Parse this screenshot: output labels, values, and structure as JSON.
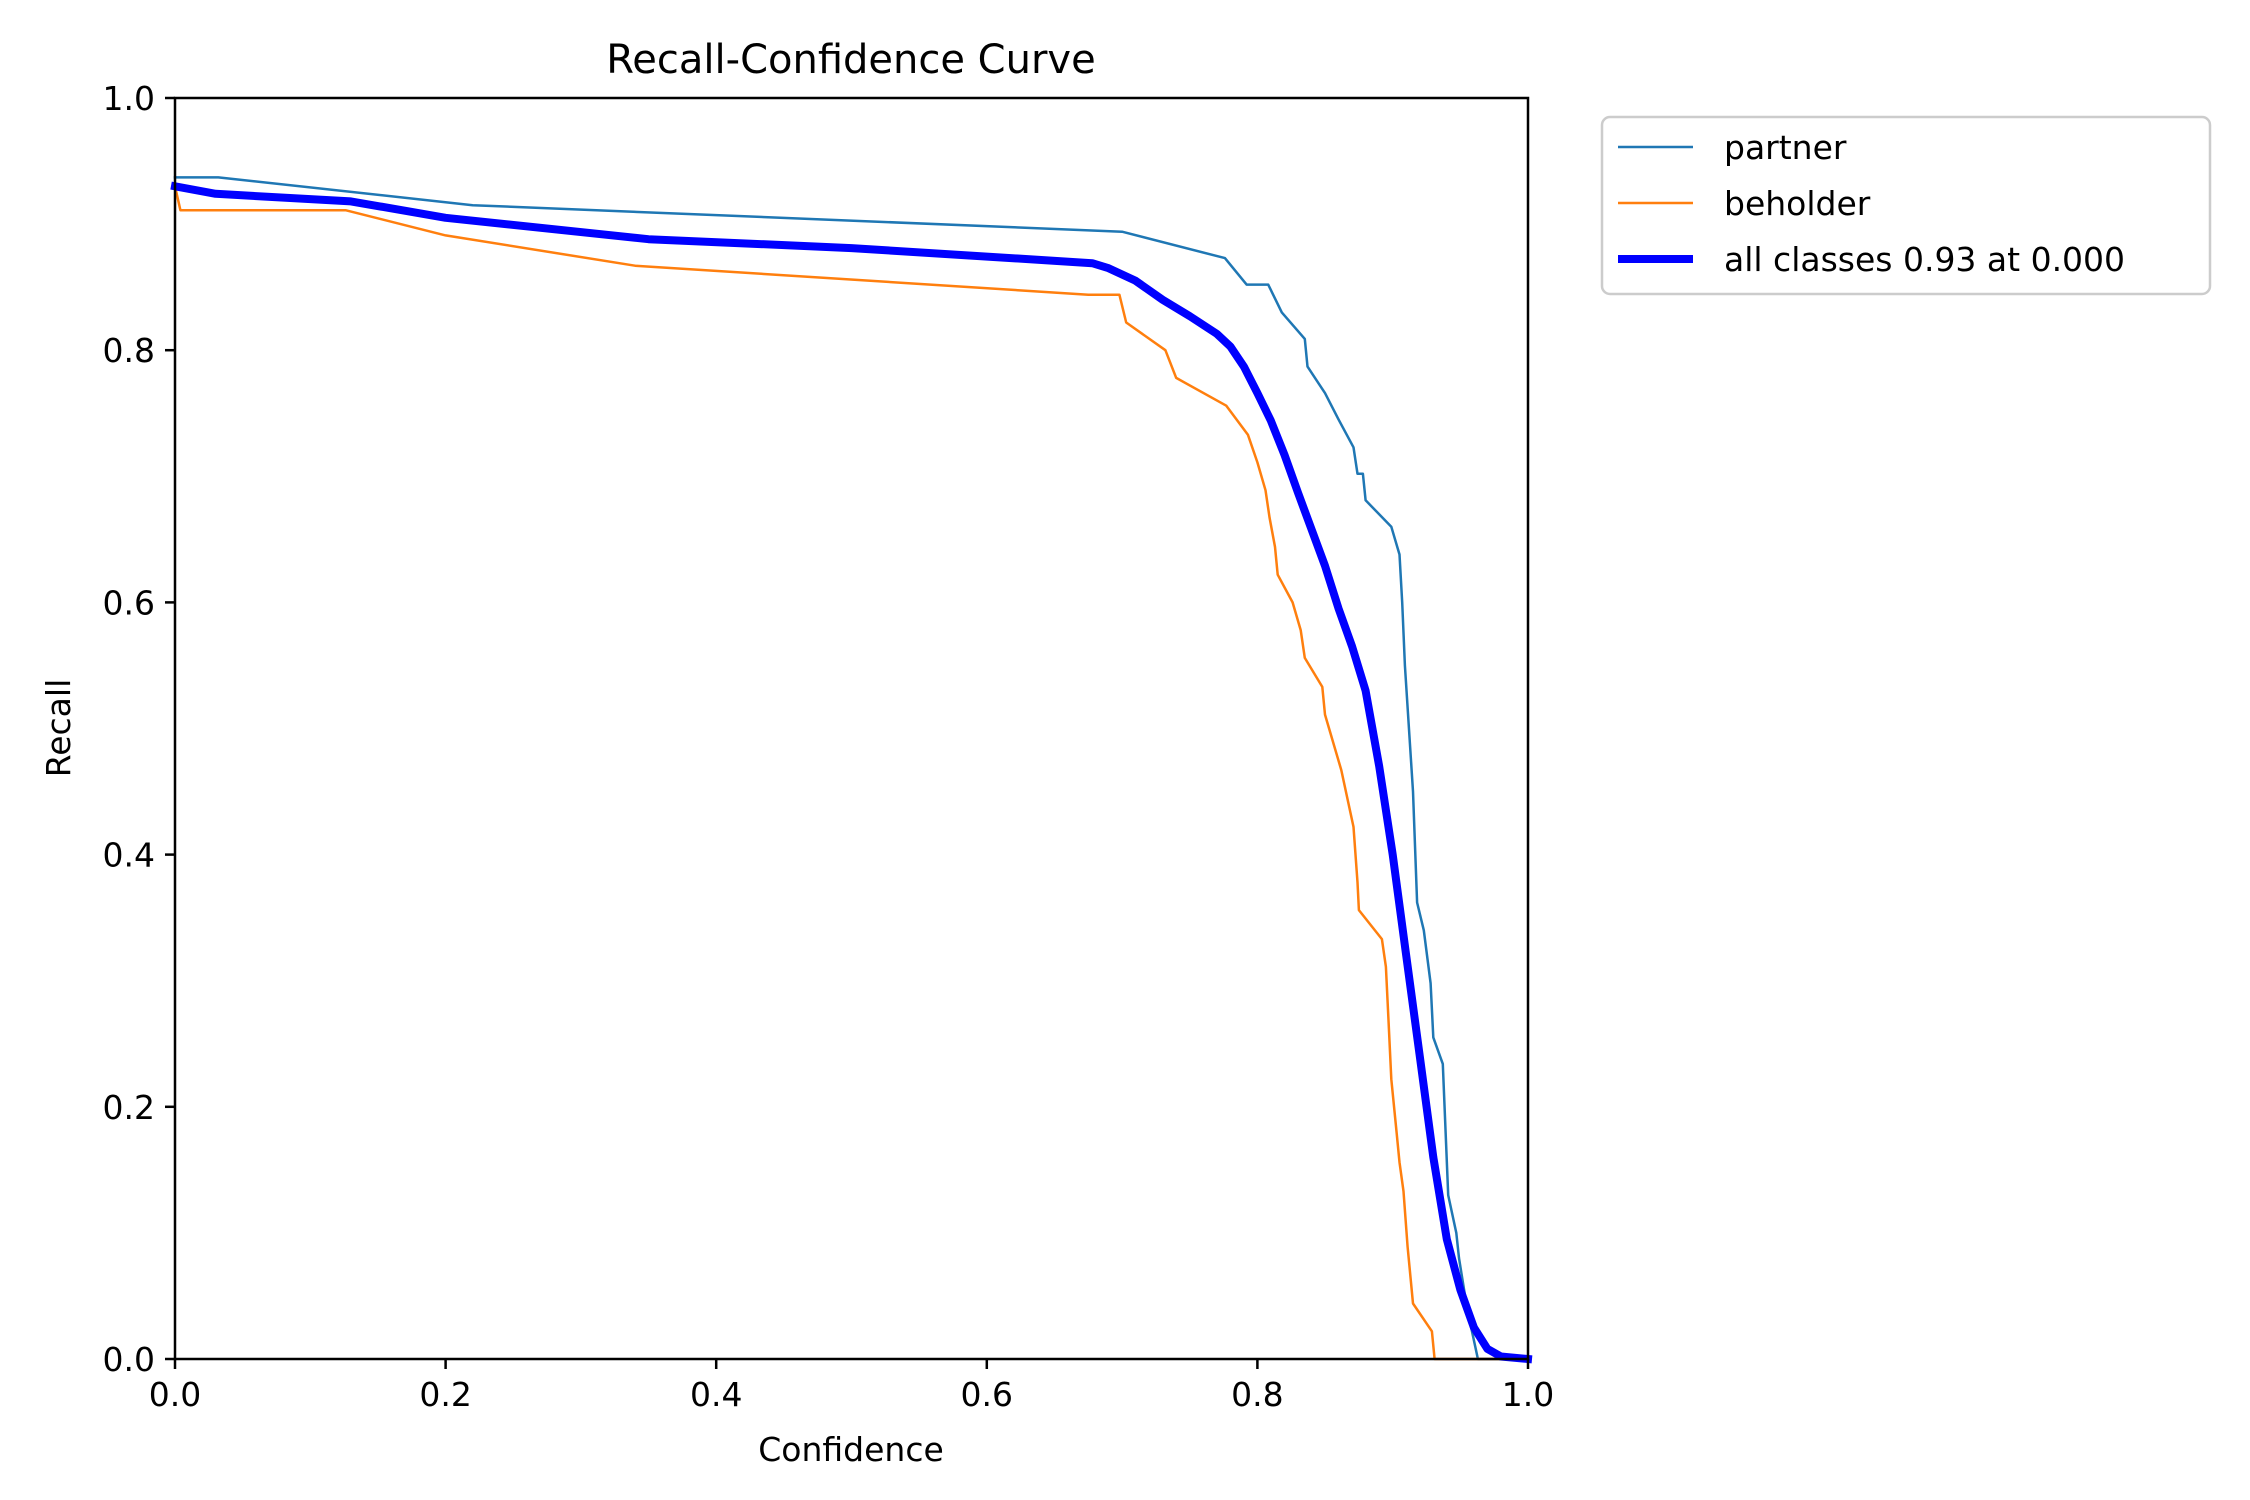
{
  "chart_data": {
    "type": "line",
    "title": "Recall-Confidence Curve",
    "xlabel": "Confidence",
    "ylabel": "Recall",
    "xlim": [
      0,
      1
    ],
    "ylim": [
      0,
      1
    ],
    "xticks": [
      "0.0",
      "0.2",
      "0.4",
      "0.6",
      "0.8",
      "1.0"
    ],
    "yticks": [
      "0.0",
      "0.2",
      "0.4",
      "0.6",
      "0.8",
      "1.0"
    ],
    "grid": false,
    "legend_position": "outside-top-right",
    "series": [
      {
        "name": "partner",
        "color": "#1f77b4",
        "line_width": "thin",
        "points": [
          [
            0.0,
            0.937
          ],
          [
            0.032,
            0.937
          ],
          [
            0.22,
            0.915
          ],
          [
            0.7,
            0.894
          ],
          [
            0.776,
            0.873
          ],
          [
            0.792,
            0.852
          ],
          [
            0.808,
            0.852
          ],
          [
            0.818,
            0.83
          ],
          [
            0.835,
            0.809
          ],
          [
            0.837,
            0.787
          ],
          [
            0.85,
            0.766
          ],
          [
            0.86,
            0.745
          ],
          [
            0.871,
            0.723
          ],
          [
            0.874,
            0.702
          ],
          [
            0.878,
            0.702
          ],
          [
            0.88,
            0.681
          ],
          [
            0.899,
            0.66
          ],
          [
            0.905,
            0.638
          ],
          [
            0.907,
            0.6
          ],
          [
            0.909,
            0.55
          ],
          [
            0.915,
            0.45
          ],
          [
            0.918,
            0.362
          ],
          [
            0.923,
            0.34
          ],
          [
            0.928,
            0.298
          ],
          [
            0.93,
            0.255
          ],
          [
            0.937,
            0.234
          ],
          [
            0.941,
            0.13
          ],
          [
            0.947,
            0.1
          ],
          [
            0.949,
            0.08
          ],
          [
            0.955,
            0.04
          ],
          [
            0.961,
            0.01
          ],
          [
            0.963,
            0.0
          ],
          [
            1.0,
            0.0
          ]
        ]
      },
      {
        "name": "beholder",
        "color": "#ff7f0e",
        "line_width": "thin",
        "points": [
          [
            0.0,
            0.93
          ],
          [
            0.004,
            0.911
          ],
          [
            0.126,
            0.911
          ],
          [
            0.2,
            0.891
          ],
          [
            0.34,
            0.867
          ],
          [
            0.675,
            0.844
          ],
          [
            0.698,
            0.844
          ],
          [
            0.703,
            0.822
          ],
          [
            0.732,
            0.8
          ],
          [
            0.74,
            0.778
          ],
          [
            0.777,
            0.756
          ],
          [
            0.793,
            0.733
          ],
          [
            0.8,
            0.711
          ],
          [
            0.806,
            0.689
          ],
          [
            0.809,
            0.667
          ],
          [
            0.813,
            0.644
          ],
          [
            0.815,
            0.622
          ],
          [
            0.826,
            0.6
          ],
          [
            0.832,
            0.578
          ],
          [
            0.835,
            0.556
          ],
          [
            0.848,
            0.533
          ],
          [
            0.85,
            0.511
          ],
          [
            0.862,
            0.467
          ],
          [
            0.871,
            0.422
          ],
          [
            0.874,
            0.378
          ],
          [
            0.875,
            0.356
          ],
          [
            0.892,
            0.333
          ],
          [
            0.895,
            0.311
          ],
          [
            0.897,
            0.267
          ],
          [
            0.899,
            0.222
          ],
          [
            0.903,
            0.178
          ],
          [
            0.905,
            0.156
          ],
          [
            0.908,
            0.133
          ],
          [
            0.911,
            0.089
          ],
          [
            0.915,
            0.044
          ],
          [
            0.929,
            0.022
          ],
          [
            0.931,
            0.0
          ],
          [
            1.0,
            0.0
          ]
        ]
      },
      {
        "name": "all classes 0.93 at 0.000",
        "color": "#0000ff",
        "line_width": "thick",
        "points": [
          [
            0.0,
            0.93
          ],
          [
            0.03,
            0.924
          ],
          [
            0.13,
            0.918
          ],
          [
            0.2,
            0.905
          ],
          [
            0.35,
            0.888
          ],
          [
            0.5,
            0.881
          ],
          [
            0.678,
            0.869
          ],
          [
            0.69,
            0.865
          ],
          [
            0.71,
            0.855
          ],
          [
            0.73,
            0.84
          ],
          [
            0.75,
            0.827
          ],
          [
            0.77,
            0.813
          ],
          [
            0.78,
            0.803
          ],
          [
            0.79,
            0.787
          ],
          [
            0.8,
            0.766
          ],
          [
            0.81,
            0.744
          ],
          [
            0.82,
            0.717
          ],
          [
            0.83,
            0.687
          ],
          [
            0.84,
            0.658
          ],
          [
            0.85,
            0.629
          ],
          [
            0.86,
            0.595
          ],
          [
            0.87,
            0.565
          ],
          [
            0.88,
            0.53
          ],
          [
            0.89,
            0.47
          ],
          [
            0.9,
            0.4
          ],
          [
            0.91,
            0.32
          ],
          [
            0.92,
            0.24
          ],
          [
            0.93,
            0.16
          ],
          [
            0.94,
            0.095
          ],
          [
            0.95,
            0.055
          ],
          [
            0.96,
            0.025
          ],
          [
            0.97,
            0.008
          ],
          [
            0.98,
            0.002
          ],
          [
            1.0,
            0.0
          ]
        ]
      }
    ]
  }
}
